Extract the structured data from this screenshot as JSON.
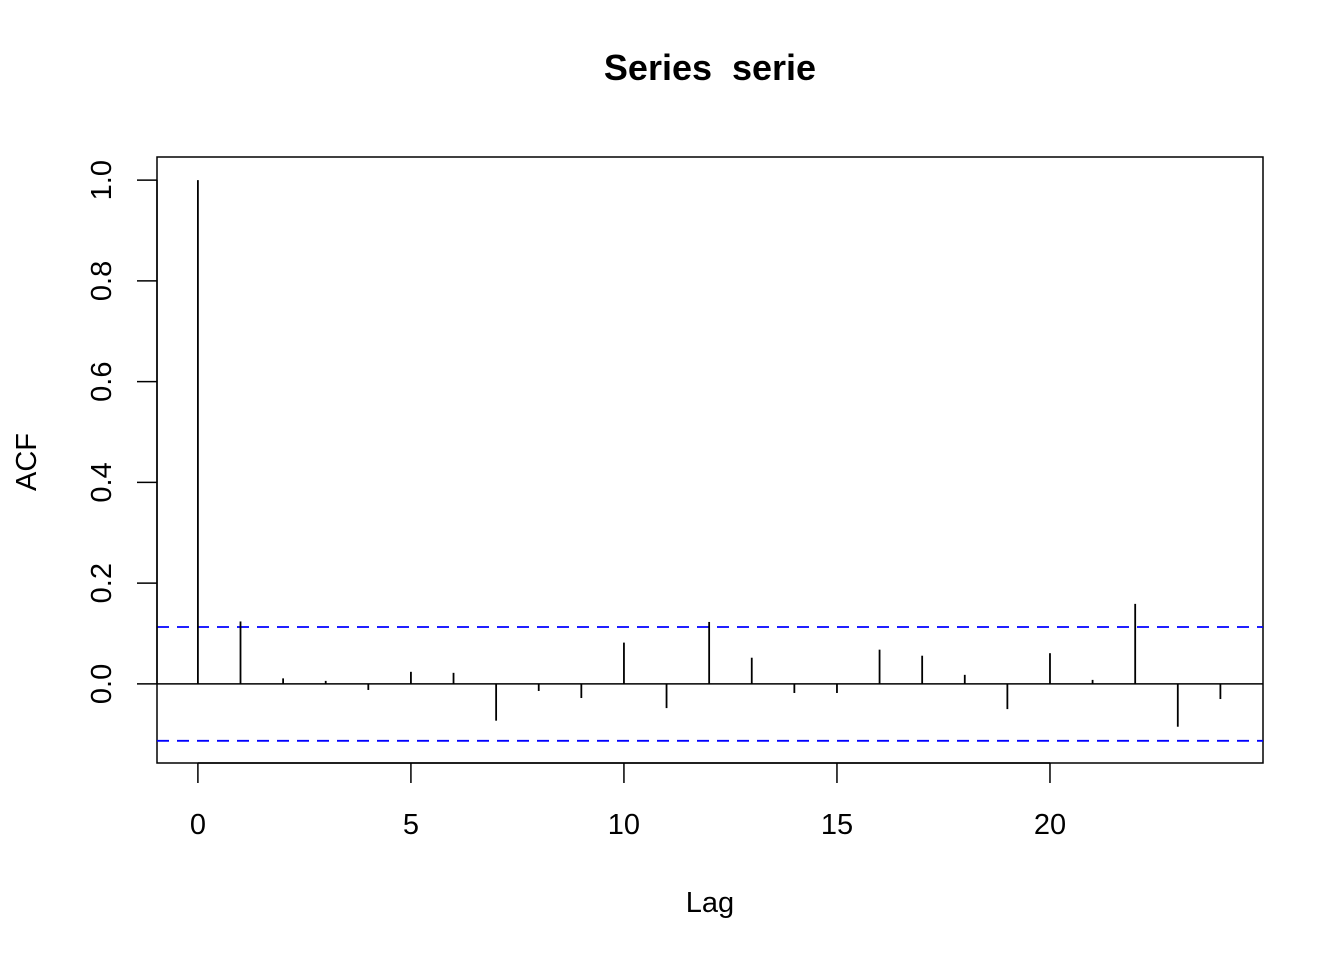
{
  "chart_data": {
    "type": "bar",
    "title": "Series  serie",
    "xlabel": "Lag",
    "ylabel": "ACF",
    "xlim": [
      -0.96,
      25.0
    ],
    "ylim": [
      -0.157,
      1.046
    ],
    "xticks": [
      0,
      5,
      10,
      15,
      20
    ],
    "yticks": [
      0.0,
      0.2,
      0.4,
      0.6,
      0.8,
      1.0
    ],
    "ytick_labels": [
      "0.0",
      "0.2",
      "0.4",
      "0.6",
      "0.8",
      "1.0"
    ],
    "grid": false,
    "lags": [
      0,
      1,
      2,
      3,
      4,
      5,
      6,
      7,
      8,
      9,
      10,
      11,
      12,
      13,
      14,
      15,
      16,
      17,
      18,
      19,
      20,
      21,
      22,
      23,
      24
    ],
    "acf": [
      1.0,
      0.124,
      0.011,
      0.006,
      -0.012,
      0.024,
      0.022,
      -0.073,
      -0.014,
      -0.028,
      0.082,
      -0.048,
      0.123,
      0.052,
      -0.018,
      -0.018,
      0.068,
      0.056,
      0.018,
      -0.05,
      0.061,
      0.008,
      0.159,
      -0.085,
      -0.03
    ],
    "confidence_bounds": [
      0.113,
      -0.113
    ],
    "colors": {
      "bars": "#000000",
      "confidence": "#0000FF"
    }
  }
}
